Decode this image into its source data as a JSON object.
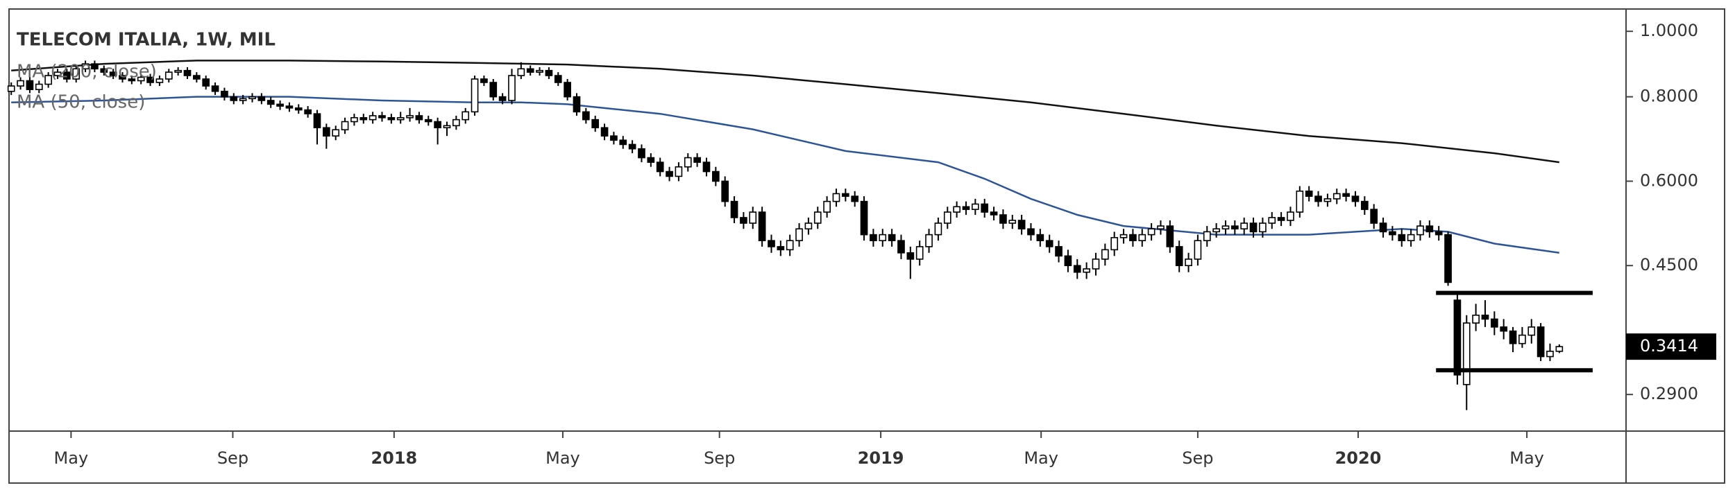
{
  "chart_data": {
    "type": "candlestick",
    "title": "TELECOM ITALIA, 1W, MIL",
    "log": true,
    "ylim": [
      0.256,
      1.079
    ],
    "yticks": [
      {
        "value": 1,
        "label": "1.0000"
      },
      {
        "value": 0.8,
        "label": "0.8000"
      },
      {
        "value": 0.6,
        "label": "0.6000"
      },
      {
        "value": 0.45,
        "label": "0.4500"
      },
      {
        "value": 0.29,
        "label": "0.2900"
      }
    ],
    "xlim": [
      -0.24,
      174.2
    ],
    "xticks": [
      {
        "value": 6.45,
        "label": "May"
      },
      {
        "value": 23.9,
        "label": "Sep"
      },
      {
        "value": 41.3,
        "label": "2018"
      },
      {
        "value": 59.5,
        "label": "May"
      },
      {
        "value": 76.4,
        "label": "Sep"
      },
      {
        "value": 93.8,
        "label": "2019"
      },
      {
        "value": 111.1,
        "label": "May"
      },
      {
        "value": 128,
        "label": "Sep"
      },
      {
        "value": 145.3,
        "label": "2020"
      },
      {
        "value": 163.5,
        "label": "May"
      }
    ],
    "up_color": "#ffffff",
    "down_color": "#000000",
    "levels": [
      0.41,
      0.315
    ],
    "series": [
      {
        "name": "MA (200, close)",
        "color": "#111111",
        "x": [
          0,
          10,
          20,
          30,
          40,
          50,
          60,
          70,
          80,
          90,
          100,
          110,
          120,
          130,
          140,
          150,
          160,
          167
        ],
        "values": [
          0.875,
          0.895,
          0.905,
          0.905,
          0.902,
          0.898,
          0.893,
          0.88,
          0.86,
          0.835,
          0.81,
          0.785,
          0.755,
          0.725,
          0.7,
          0.683,
          0.66,
          0.64
        ]
      },
      {
        "name": "MA (50, close)",
        "color": "#2c5597",
        "x": [
          0,
          10,
          20,
          30,
          40,
          50,
          55,
          60,
          70,
          80,
          90,
          100,
          105,
          110,
          115,
          120,
          130,
          140,
          150,
          155,
          160,
          167
        ],
        "values": [
          0.785,
          0.79,
          0.8,
          0.8,
          0.79,
          0.785,
          0.785,
          0.78,
          0.755,
          0.716,
          0.665,
          0.64,
          0.605,
          0.565,
          0.535,
          0.515,
          0.5,
          0.5,
          0.51,
          0.505,
          0.485,
          0.47
        ]
      }
    ],
    "ohlc": [
      [
        0.815,
        0.84,
        0.805,
        0.83
      ],
      [
        0.83,
        0.855,
        0.82,
        0.845
      ],
      [
        0.845,
        0.855,
        0.81,
        0.82
      ],
      [
        0.82,
        0.845,
        0.81,
        0.835
      ],
      [
        0.835,
        0.87,
        0.825,
        0.86
      ],
      [
        0.86,
        0.88,
        0.85,
        0.87
      ],
      [
        0.87,
        0.88,
        0.84,
        0.85
      ],
      [
        0.85,
        0.89,
        0.84,
        0.88
      ],
      [
        0.88,
        0.905,
        0.87,
        0.895
      ],
      [
        0.895,
        0.905,
        0.87,
        0.88
      ],
      [
        0.88,
        0.89,
        0.86,
        0.87
      ],
      [
        0.87,
        0.88,
        0.85,
        0.86
      ],
      [
        0.86,
        0.87,
        0.84,
        0.85
      ],
      [
        0.85,
        0.86,
        0.835,
        0.845
      ],
      [
        0.845,
        0.865,
        0.835,
        0.855
      ],
      [
        0.855,
        0.865,
        0.83,
        0.84
      ],
      [
        0.84,
        0.86,
        0.83,
        0.85
      ],
      [
        0.85,
        0.88,
        0.84,
        0.87
      ],
      [
        0.87,
        0.885,
        0.86,
        0.875
      ],
      [
        0.875,
        0.885,
        0.85,
        0.86
      ],
      [
        0.86,
        0.87,
        0.84,
        0.85
      ],
      [
        0.85,
        0.86,
        0.82,
        0.83
      ],
      [
        0.83,
        0.84,
        0.805,
        0.815
      ],
      [
        0.815,
        0.825,
        0.79,
        0.8
      ],
      [
        0.8,
        0.81,
        0.78,
        0.79
      ],
      [
        0.79,
        0.805,
        0.78,
        0.795
      ],
      [
        0.795,
        0.81,
        0.785,
        0.8
      ],
      [
        0.8,
        0.81,
        0.78,
        0.79
      ],
      [
        0.79,
        0.8,
        0.77,
        0.78
      ],
      [
        0.78,
        0.79,
        0.765,
        0.775
      ],
      [
        0.775,
        0.785,
        0.76,
        0.77
      ],
      [
        0.77,
        0.78,
        0.755,
        0.765
      ],
      [
        0.765,
        0.775,
        0.745,
        0.755
      ],
      [
        0.755,
        0.765,
        0.68,
        0.72
      ],
      [
        0.72,
        0.73,
        0.67,
        0.7
      ],
      [
        0.7,
        0.725,
        0.69,
        0.715
      ],
      [
        0.715,
        0.745,
        0.705,
        0.735
      ],
      [
        0.735,
        0.755,
        0.725,
        0.745
      ],
      [
        0.745,
        0.755,
        0.73,
        0.74
      ],
      [
        0.74,
        0.76,
        0.73,
        0.75
      ],
      [
        0.75,
        0.76,
        0.735,
        0.745
      ],
      [
        0.745,
        0.755,
        0.73,
        0.74
      ],
      [
        0.74,
        0.76,
        0.73,
        0.745
      ],
      [
        0.745,
        0.77,
        0.735,
        0.75
      ],
      [
        0.75,
        0.76,
        0.73,
        0.74
      ],
      [
        0.74,
        0.75,
        0.725,
        0.735
      ],
      [
        0.735,
        0.745,
        0.68,
        0.72
      ],
      [
        0.72,
        0.735,
        0.7,
        0.725
      ],
      [
        0.725,
        0.75,
        0.715,
        0.74
      ],
      [
        0.74,
        0.77,
        0.73,
        0.76
      ],
      [
        0.76,
        0.86,
        0.75,
        0.85
      ],
      [
        0.85,
        0.86,
        0.83,
        0.84
      ],
      [
        0.84,
        0.85,
        0.79,
        0.8
      ],
      [
        0.8,
        0.81,
        0.78,
        0.79
      ],
      [
        0.79,
        0.88,
        0.78,
        0.86
      ],
      [
        0.86,
        0.9,
        0.85,
        0.88
      ],
      [
        0.88,
        0.89,
        0.86,
        0.87
      ],
      [
        0.87,
        0.885,
        0.86,
        0.875
      ],
      [
        0.875,
        0.885,
        0.85,
        0.86
      ],
      [
        0.86,
        0.87,
        0.83,
        0.84
      ],
      [
        0.84,
        0.85,
        0.79,
        0.8
      ],
      [
        0.8,
        0.81,
        0.75,
        0.76
      ],
      [
        0.76,
        0.77,
        0.73,
        0.74
      ],
      [
        0.74,
        0.75,
        0.71,
        0.72
      ],
      [
        0.72,
        0.73,
        0.69,
        0.7
      ],
      [
        0.7,
        0.71,
        0.68,
        0.69
      ],
      [
        0.69,
        0.7,
        0.67,
        0.68
      ],
      [
        0.68,
        0.69,
        0.66,
        0.67
      ],
      [
        0.67,
        0.68,
        0.64,
        0.65
      ],
      [
        0.65,
        0.66,
        0.63,
        0.64
      ],
      [
        0.64,
        0.65,
        0.61,
        0.62
      ],
      [
        0.62,
        0.63,
        0.6,
        0.61
      ],
      [
        0.61,
        0.64,
        0.6,
        0.63
      ],
      [
        0.63,
        0.66,
        0.62,
        0.65
      ],
      [
        0.65,
        0.66,
        0.63,
        0.64
      ],
      [
        0.64,
        0.65,
        0.61,
        0.62
      ],
      [
        0.62,
        0.63,
        0.59,
        0.6
      ],
      [
        0.6,
        0.61,
        0.55,
        0.56
      ],
      [
        0.56,
        0.57,
        0.52,
        0.53
      ],
      [
        0.53,
        0.54,
        0.51,
        0.52
      ],
      [
        0.52,
        0.55,
        0.51,
        0.54
      ],
      [
        0.54,
        0.55,
        0.48,
        0.49
      ],
      [
        0.49,
        0.5,
        0.47,
        0.48
      ],
      [
        0.48,
        0.49,
        0.465,
        0.475
      ],
      [
        0.475,
        0.5,
        0.465,
        0.49
      ],
      [
        0.49,
        0.52,
        0.48,
        0.51
      ],
      [
        0.51,
        0.53,
        0.5,
        0.52
      ],
      [
        0.52,
        0.55,
        0.51,
        0.54
      ],
      [
        0.54,
        0.57,
        0.53,
        0.56
      ],
      [
        0.56,
        0.585,
        0.55,
        0.575
      ],
      [
        0.575,
        0.585,
        0.56,
        0.57
      ],
      [
        0.57,
        0.58,
        0.55,
        0.56
      ],
      [
        0.56,
        0.57,
        0.49,
        0.5
      ],
      [
        0.5,
        0.51,
        0.48,
        0.49
      ],
      [
        0.49,
        0.51,
        0.48,
        0.5
      ],
      [
        0.5,
        0.51,
        0.48,
        0.49
      ],
      [
        0.49,
        0.5,
        0.46,
        0.47
      ],
      [
        0.47,
        0.48,
        0.43,
        0.46
      ],
      [
        0.46,
        0.49,
        0.45,
        0.48
      ],
      [
        0.48,
        0.51,
        0.47,
        0.5
      ],
      [
        0.5,
        0.53,
        0.49,
        0.52
      ],
      [
        0.52,
        0.55,
        0.51,
        0.54
      ],
      [
        0.54,
        0.56,
        0.53,
        0.55
      ],
      [
        0.55,
        0.56,
        0.535,
        0.545
      ],
      [
        0.545,
        0.565,
        0.535,
        0.555
      ],
      [
        0.555,
        0.565,
        0.53,
        0.54
      ],
      [
        0.54,
        0.55,
        0.525,
        0.535
      ],
      [
        0.535,
        0.545,
        0.51,
        0.52
      ],
      [
        0.52,
        0.535,
        0.51,
        0.525
      ],
      [
        0.525,
        0.535,
        0.5,
        0.51
      ],
      [
        0.51,
        0.52,
        0.49,
        0.5
      ],
      [
        0.5,
        0.51,
        0.48,
        0.49
      ],
      [
        0.49,
        0.5,
        0.47,
        0.48
      ],
      [
        0.48,
        0.49,
        0.455,
        0.465
      ],
      [
        0.465,
        0.475,
        0.44,
        0.45
      ],
      [
        0.45,
        0.46,
        0.43,
        0.44
      ],
      [
        0.44,
        0.455,
        0.43,
        0.445
      ],
      [
        0.445,
        0.47,
        0.435,
        0.46
      ],
      [
        0.46,
        0.485,
        0.45,
        0.475
      ],
      [
        0.475,
        0.505,
        0.465,
        0.495
      ],
      [
        0.495,
        0.51,
        0.485,
        0.5
      ],
      [
        0.5,
        0.51,
        0.48,
        0.49
      ],
      [
        0.49,
        0.51,
        0.48,
        0.5
      ],
      [
        0.5,
        0.52,
        0.49,
        0.51
      ],
      [
        0.51,
        0.525,
        0.5,
        0.515
      ],
      [
        0.515,
        0.525,
        0.47,
        0.48
      ],
      [
        0.48,
        0.49,
        0.44,
        0.45
      ],
      [
        0.45,
        0.47,
        0.44,
        0.46
      ],
      [
        0.46,
        0.5,
        0.45,
        0.49
      ],
      [
        0.49,
        0.515,
        0.48,
        0.505
      ],
      [
        0.505,
        0.52,
        0.495,
        0.51
      ],
      [
        0.51,
        0.525,
        0.5,
        0.515
      ],
      [
        0.515,
        0.525,
        0.5,
        0.51
      ],
      [
        0.51,
        0.53,
        0.5,
        0.52
      ],
      [
        0.52,
        0.53,
        0.495,
        0.505
      ],
      [
        0.505,
        0.53,
        0.495,
        0.52
      ],
      [
        0.52,
        0.54,
        0.51,
        0.53
      ],
      [
        0.53,
        0.54,
        0.515,
        0.525
      ],
      [
        0.525,
        0.55,
        0.515,
        0.54
      ],
      [
        0.54,
        0.59,
        0.53,
        0.58
      ],
      [
        0.58,
        0.59,
        0.56,
        0.57
      ],
      [
        0.57,
        0.58,
        0.55,
        0.56
      ],
      [
        0.56,
        0.575,
        0.55,
        0.565
      ],
      [
        0.565,
        0.585,
        0.555,
        0.575
      ],
      [
        0.575,
        0.585,
        0.56,
        0.57
      ],
      [
        0.57,
        0.58,
        0.55,
        0.56
      ],
      [
        0.56,
        0.57,
        0.535,
        0.545
      ],
      [
        0.545,
        0.555,
        0.51,
        0.52
      ],
      [
        0.52,
        0.53,
        0.495,
        0.505
      ],
      [
        0.505,
        0.515,
        0.49,
        0.5
      ],
      [
        0.5,
        0.51,
        0.48,
        0.49
      ],
      [
        0.49,
        0.51,
        0.48,
        0.5
      ],
      [
        0.5,
        0.525,
        0.49,
        0.515
      ],
      [
        0.515,
        0.525,
        0.495,
        0.505
      ],
      [
        0.505,
        0.515,
        0.49,
        0.5
      ],
      [
        0.5,
        0.505,
        0.42,
        0.425
      ],
      [
        0.4,
        0.41,
        0.3,
        0.31
      ],
      [
        0.3,
        0.38,
        0.275,
        0.37
      ],
      [
        0.37,
        0.395,
        0.36,
        0.38
      ],
      [
        0.38,
        0.4,
        0.365,
        0.375
      ],
      [
        0.375,
        0.385,
        0.355,
        0.365
      ],
      [
        0.365,
        0.375,
        0.35,
        0.36
      ],
      [
        0.36,
        0.365,
        0.335,
        0.345
      ],
      [
        0.345,
        0.365,
        0.34,
        0.355
      ],
      [
        0.355,
        0.375,
        0.345,
        0.365
      ],
      [
        0.365,
        0.37,
        0.325,
        0.33
      ],
      [
        0.33,
        0.345,
        0.325,
        0.336
      ],
      [
        0.336,
        0.344,
        0.334,
        0.3414
      ]
    ]
  }
}
